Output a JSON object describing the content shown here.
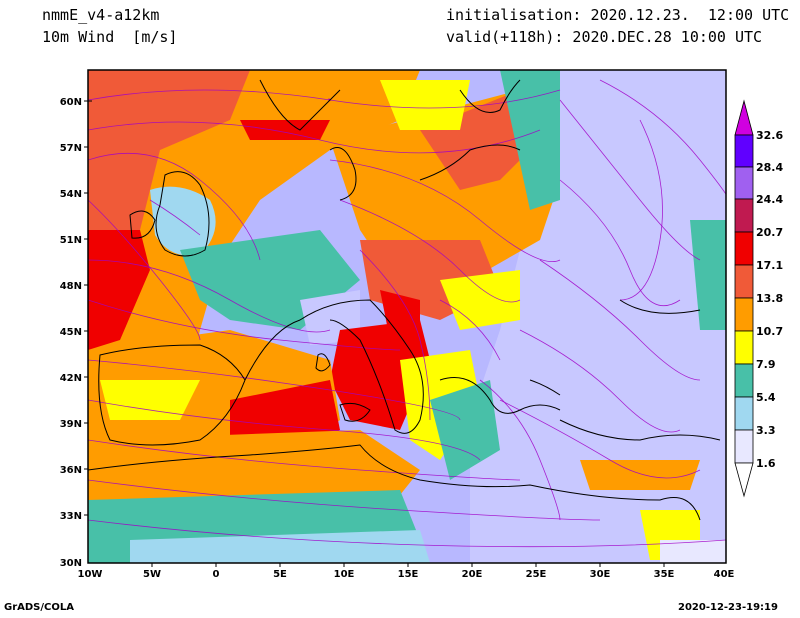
{
  "header": {
    "model": "nmmE_v4-a12km",
    "variable": "10m Wind  [m/s]",
    "initialisation": "initialisation: 2020.12.23.  12:00 UTC",
    "valid": "valid(+118h): 2020.DEC.28 10:00 UTC"
  },
  "map": {
    "lat_labels": [
      "60N",
      "57N",
      "54N",
      "51N",
      "48N",
      "45N",
      "42N",
      "39N",
      "36N",
      "33N",
      "30N"
    ],
    "lon_labels": [
      "10W",
      "5W",
      "0",
      "5E",
      "10E",
      "15E",
      "20E",
      "25E",
      "30E",
      "35E",
      "40E"
    ]
  },
  "colorbar": {
    "labels": [
      "32.6",
      "28.4",
      "24.4",
      "20.7",
      "17.1",
      "13.8",
      "10.7",
      "7.9",
      "5.4",
      "3.3",
      "1.6"
    ],
    "colors": [
      "#e8e8ff",
      "#a0d8f0",
      "#48c0a8",
      "#ffff00",
      "#ff9c00",
      "#f05a38",
      "#f00000",
      "#c01a50",
      "#a060f0",
      "#6000ff",
      "#d000e0"
    ]
  },
  "footer": {
    "left": "GrADS/COLA",
    "right": "2020-12-23-19:19"
  }
}
